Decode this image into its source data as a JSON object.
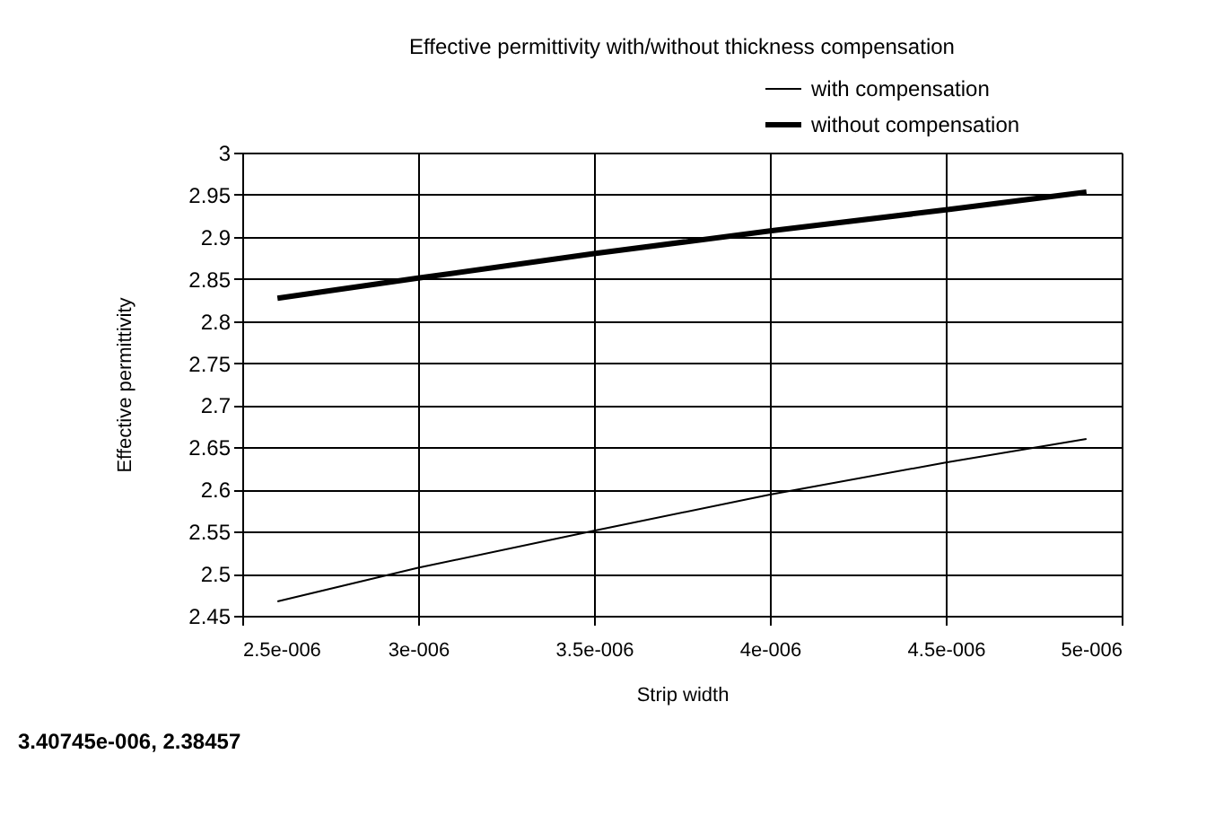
{
  "chart_data": {
    "type": "line",
    "title": "Effective permittivity with/without thickness compensation",
    "xlabel": "Strip width",
    "ylabel": "Effective permittivity",
    "x": [
      2.6e-06,
      3e-06,
      3.5e-06,
      4e-06,
      4.5e-06,
      4.9e-06
    ],
    "series": [
      {
        "name": "with compensation",
        "color": "#000000",
        "values": [
          2.467,
          2.507,
          2.551,
          2.594,
          2.632,
          2.66
        ]
      },
      {
        "name": "without compensation",
        "color": "#000000",
        "values": [
          2.827,
          2.851,
          2.88,
          2.907,
          2.932,
          2.953
        ]
      }
    ],
    "xlim": [
      2.5e-06,
      5e-06
    ],
    "xticks": [
      {
        "value": 2.5e-06,
        "label": "2.5e-006"
      },
      {
        "value": 3e-06,
        "label": "3e-006"
      },
      {
        "value": 3.5e-06,
        "label": "3.5e-006"
      },
      {
        "value": 4e-06,
        "label": "4e-006"
      },
      {
        "value": 4.5e-06,
        "label": "4.5e-006"
      },
      {
        "value": 5e-06,
        "label": "5e-006"
      }
    ],
    "ylim": [
      2.45,
      3
    ],
    "yticks": [
      2.45,
      2.5,
      2.55,
      2.6,
      2.65,
      2.7,
      2.75,
      2.8,
      2.85,
      2.9,
      2.95,
      3
    ],
    "grid": true,
    "legend": "top right",
    "marker": "none",
    "line_style": "solid",
    "annotations": [
      "3.40745e-006,  2.38457"
    ]
  }
}
